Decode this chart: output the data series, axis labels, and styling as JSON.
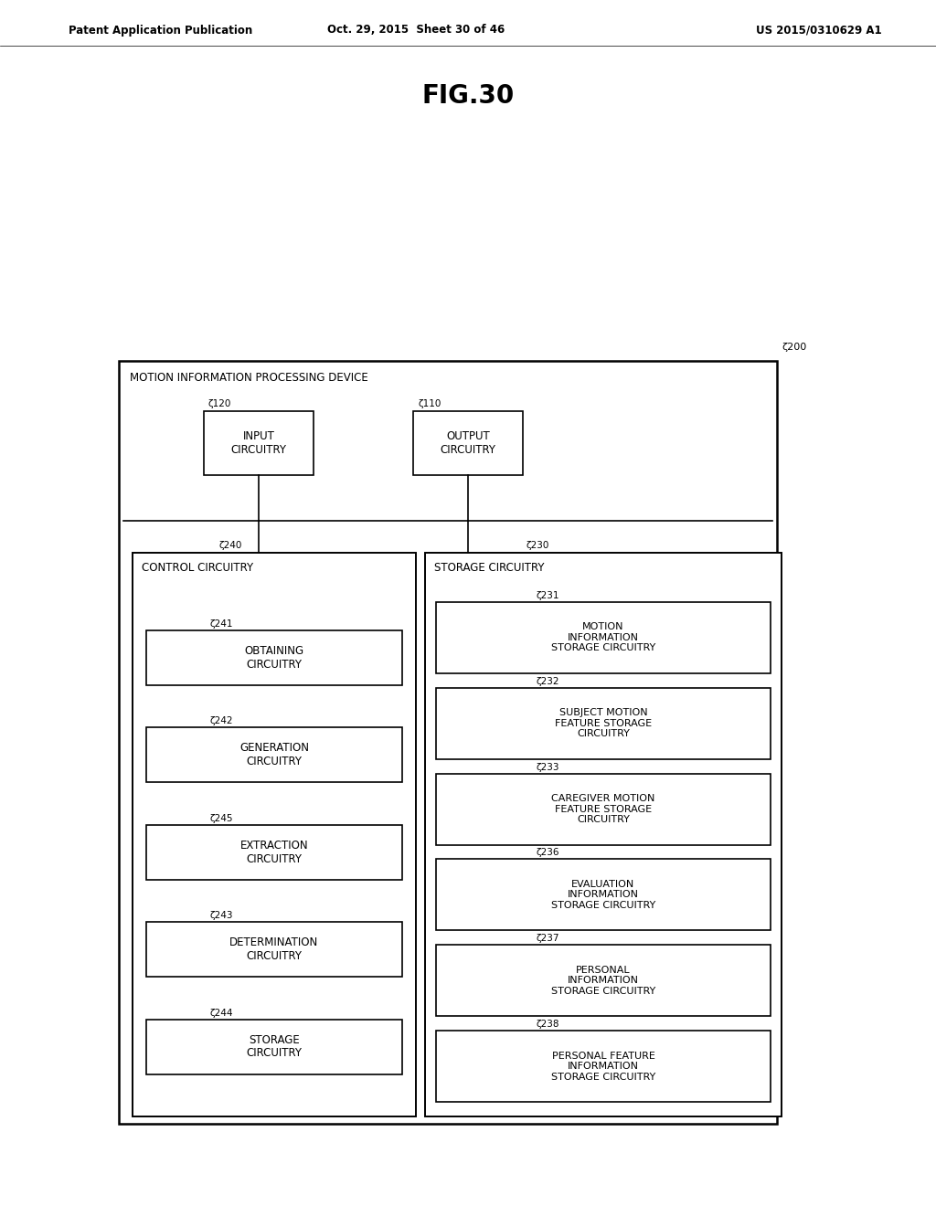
{
  "background_color": "#ffffff",
  "page_header_left": "Patent Application Publication",
  "page_header_center": "Oct. 29, 2015  Sheet 30 of 46",
  "page_header_right": "US 2015/0310629 A1",
  "fig_title": "FIG.30",
  "outer_box_label": "MOTION INFORMATION PROCESSING DEVICE",
  "outer_box_ref": "ζ200",
  "input_box_label": "INPUT\nCIRCUITRY",
  "input_box_ref": "ζ120",
  "output_box_label": "OUTPUT\nCIRCUITRY",
  "output_box_ref": "ζ110",
  "control_box_label": "CONTROL CIRCUITRY",
  "control_box_ref": "ζ240",
  "storage_box_label": "STORAGE CIRCUITRY",
  "storage_box_ref": "ζ230",
  "left_sub_boxes": [
    {
      "label": "OBTAINING\nCIRCUITRY",
      "ref": "ζ241"
    },
    {
      "label": "GENERATION\nCIRCUITRY",
      "ref": "ζ242"
    },
    {
      "label": "EXTRACTION\nCIRCUITRY",
      "ref": "ζ245"
    },
    {
      "label": "DETERMINATION\nCIRCUITRY",
      "ref": "ζ243"
    },
    {
      "label": "STORAGE\nCIRCUITRY",
      "ref": "ζ244"
    }
  ],
  "right_sub_boxes": [
    {
      "label": "MOTION\nINFORMATION\nSTORAGE CIRCUITRY",
      "ref": "ζ231"
    },
    {
      "label": "SUBJECT MOTION\nFEATURE STORAGE\nCIRCUITRY",
      "ref": "ζ232"
    },
    {
      "label": "CAREGIVER MOTION\nFEATURE STORAGE\nCIRCUITRY",
      "ref": "ζ233"
    },
    {
      "label": "EVALUATION\nINFORMATION\nSTORAGE CIRCUITRY",
      "ref": "ζ236"
    },
    {
      "label": "PERSONAL\nINFORMATION\nSTORAGE CIRCUITRY",
      "ref": "ζ237"
    },
    {
      "label": "PERSONAL FEATURE\nINFORMATION\nSTORAGE CIRCUITRY",
      "ref": "ζ238"
    }
  ]
}
